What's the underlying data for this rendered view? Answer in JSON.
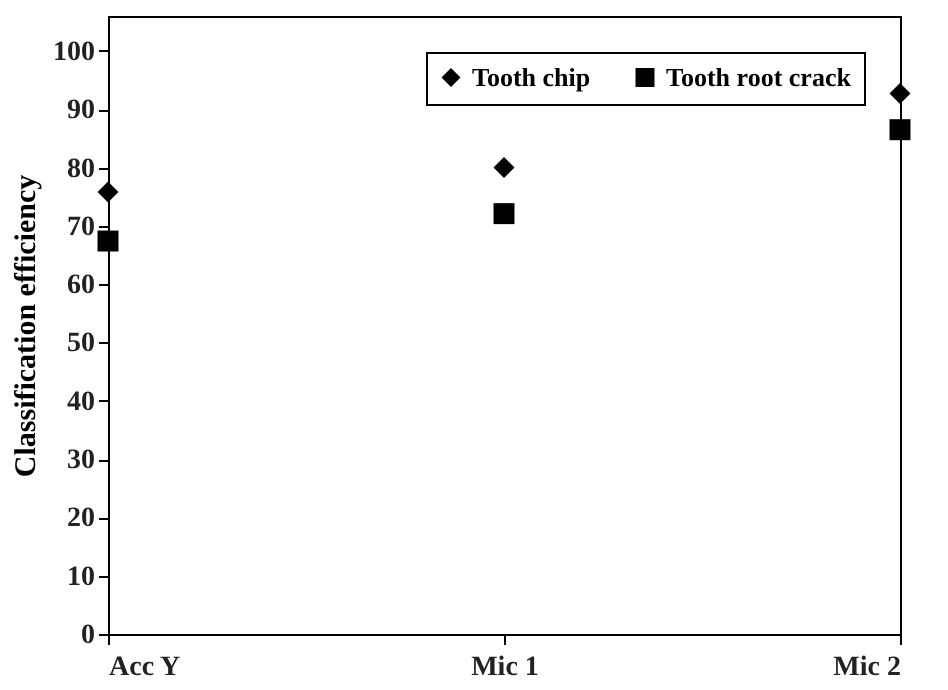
{
  "chart_data": {
    "type": "scatter",
    "ylabel": "Classification efficiency",
    "categories": [
      "Acc Y",
      "Mic 1",
      "Mic 2"
    ],
    "series": [
      {
        "name": "Tooth chip",
        "color": "#000000",
        "marker": "diamond",
        "values": [
          75.8,
          80,
          92.7
        ]
      },
      {
        "name": "Tooth root crack",
        "color": "#000000",
        "marker": "square",
        "values": [
          67.4,
          72.1,
          86.5
        ]
      }
    ],
    "ylim": [
      0,
      106
    ],
    "yticks": [
      0,
      10,
      20,
      30,
      40,
      50,
      60,
      70,
      80,
      90,
      100
    ],
    "grid": false,
    "legend": "top right"
  }
}
